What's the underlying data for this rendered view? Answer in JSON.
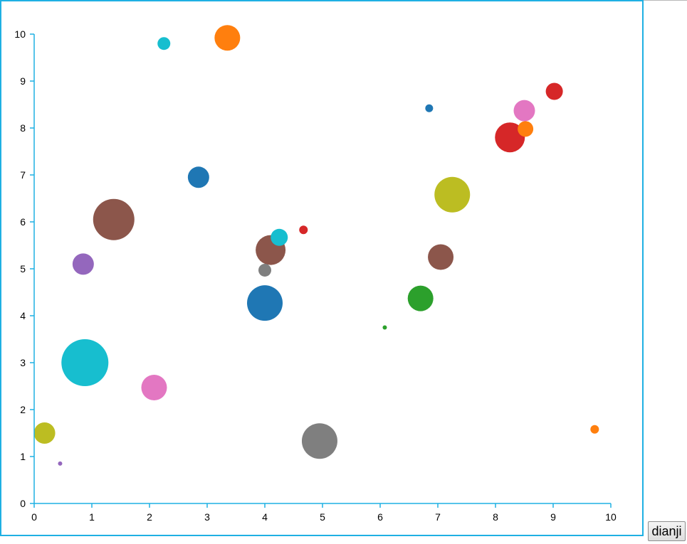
{
  "button": {
    "label": "dianji"
  },
  "chart_data": {
    "type": "scatter",
    "title": "",
    "xlabel": "",
    "ylabel": "",
    "xlim": [
      0,
      10
    ],
    "ylim": [
      0,
      10
    ],
    "x_ticks": [
      "0",
      "1",
      "2",
      "3",
      "4",
      "5",
      "6",
      "7",
      "8",
      "9",
      "10"
    ],
    "y_ticks": [
      "0",
      "1",
      "2",
      "3",
      "4",
      "5",
      "6",
      "7",
      "8",
      "9",
      "10"
    ],
    "grid": false,
    "axis_color": "#1fb0e3",
    "points": [
      {
        "x": 0.88,
        "y": 3.0,
        "size": 33,
        "color": "#17becf"
      },
      {
        "x": 1.38,
        "y": 6.05,
        "size": 29,
        "color": "#8c564b"
      },
      {
        "x": 4.95,
        "y": 1.33,
        "size": 25,
        "color": "#7f7f7f"
      },
      {
        "x": 7.25,
        "y": 6.58,
        "size": 25,
        "color": "#bcbd22"
      },
      {
        "x": 4.0,
        "y": 4.27,
        "size": 25,
        "color": "#1f77b4"
      },
      {
        "x": 8.25,
        "y": 7.8,
        "size": 21,
        "color": "#d62728"
      },
      {
        "x": 4.1,
        "y": 5.4,
        "size": 21,
        "color": "#8c564b"
      },
      {
        "x": 2.08,
        "y": 2.47,
        "size": 18,
        "color": "#e377c2"
      },
      {
        "x": 7.05,
        "y": 5.25,
        "size": 18,
        "color": "#8c564b"
      },
      {
        "x": 6.7,
        "y": 4.37,
        "size": 18,
        "color": "#2ca02c"
      },
      {
        "x": 3.35,
        "y": 9.92,
        "size": 18,
        "color": "#ff7f0e"
      },
      {
        "x": 2.85,
        "y": 6.95,
        "size": 15,
        "color": "#1f77b4"
      },
      {
        "x": 0.85,
        "y": 5.1,
        "size": 15,
        "color": "#9467bd"
      },
      {
        "x": 8.5,
        "y": 8.37,
        "size": 15,
        "color": "#e377c2"
      },
      {
        "x": 0.18,
        "y": 1.5,
        "size": 15,
        "color": "#bcbd22"
      },
      {
        "x": 8.52,
        "y": 7.98,
        "size": 11,
        "color": "#ff7f0e"
      },
      {
        "x": 9.02,
        "y": 8.78,
        "size": 12,
        "color": "#d62728"
      },
      {
        "x": 4.25,
        "y": 5.67,
        "size": 12,
        "color": "#17becf"
      },
      {
        "x": 2.25,
        "y": 9.8,
        "size": 9,
        "color": "#17becf"
      },
      {
        "x": 4.0,
        "y": 4.97,
        "size": 9,
        "color": "#7f7f7f"
      },
      {
        "x": 4.67,
        "y": 5.83,
        "size": 6,
        "color": "#d62728"
      },
      {
        "x": 6.85,
        "y": 8.42,
        "size": 5.5,
        "color": "#1f77b4"
      },
      {
        "x": 9.72,
        "y": 1.58,
        "size": 6,
        "color": "#ff7f0e"
      },
      {
        "x": 6.08,
        "y": 3.75,
        "size": 3,
        "color": "#2ca02c"
      },
      {
        "x": 0.45,
        "y": 0.85,
        "size": 3,
        "color": "#9467bd"
      }
    ]
  }
}
